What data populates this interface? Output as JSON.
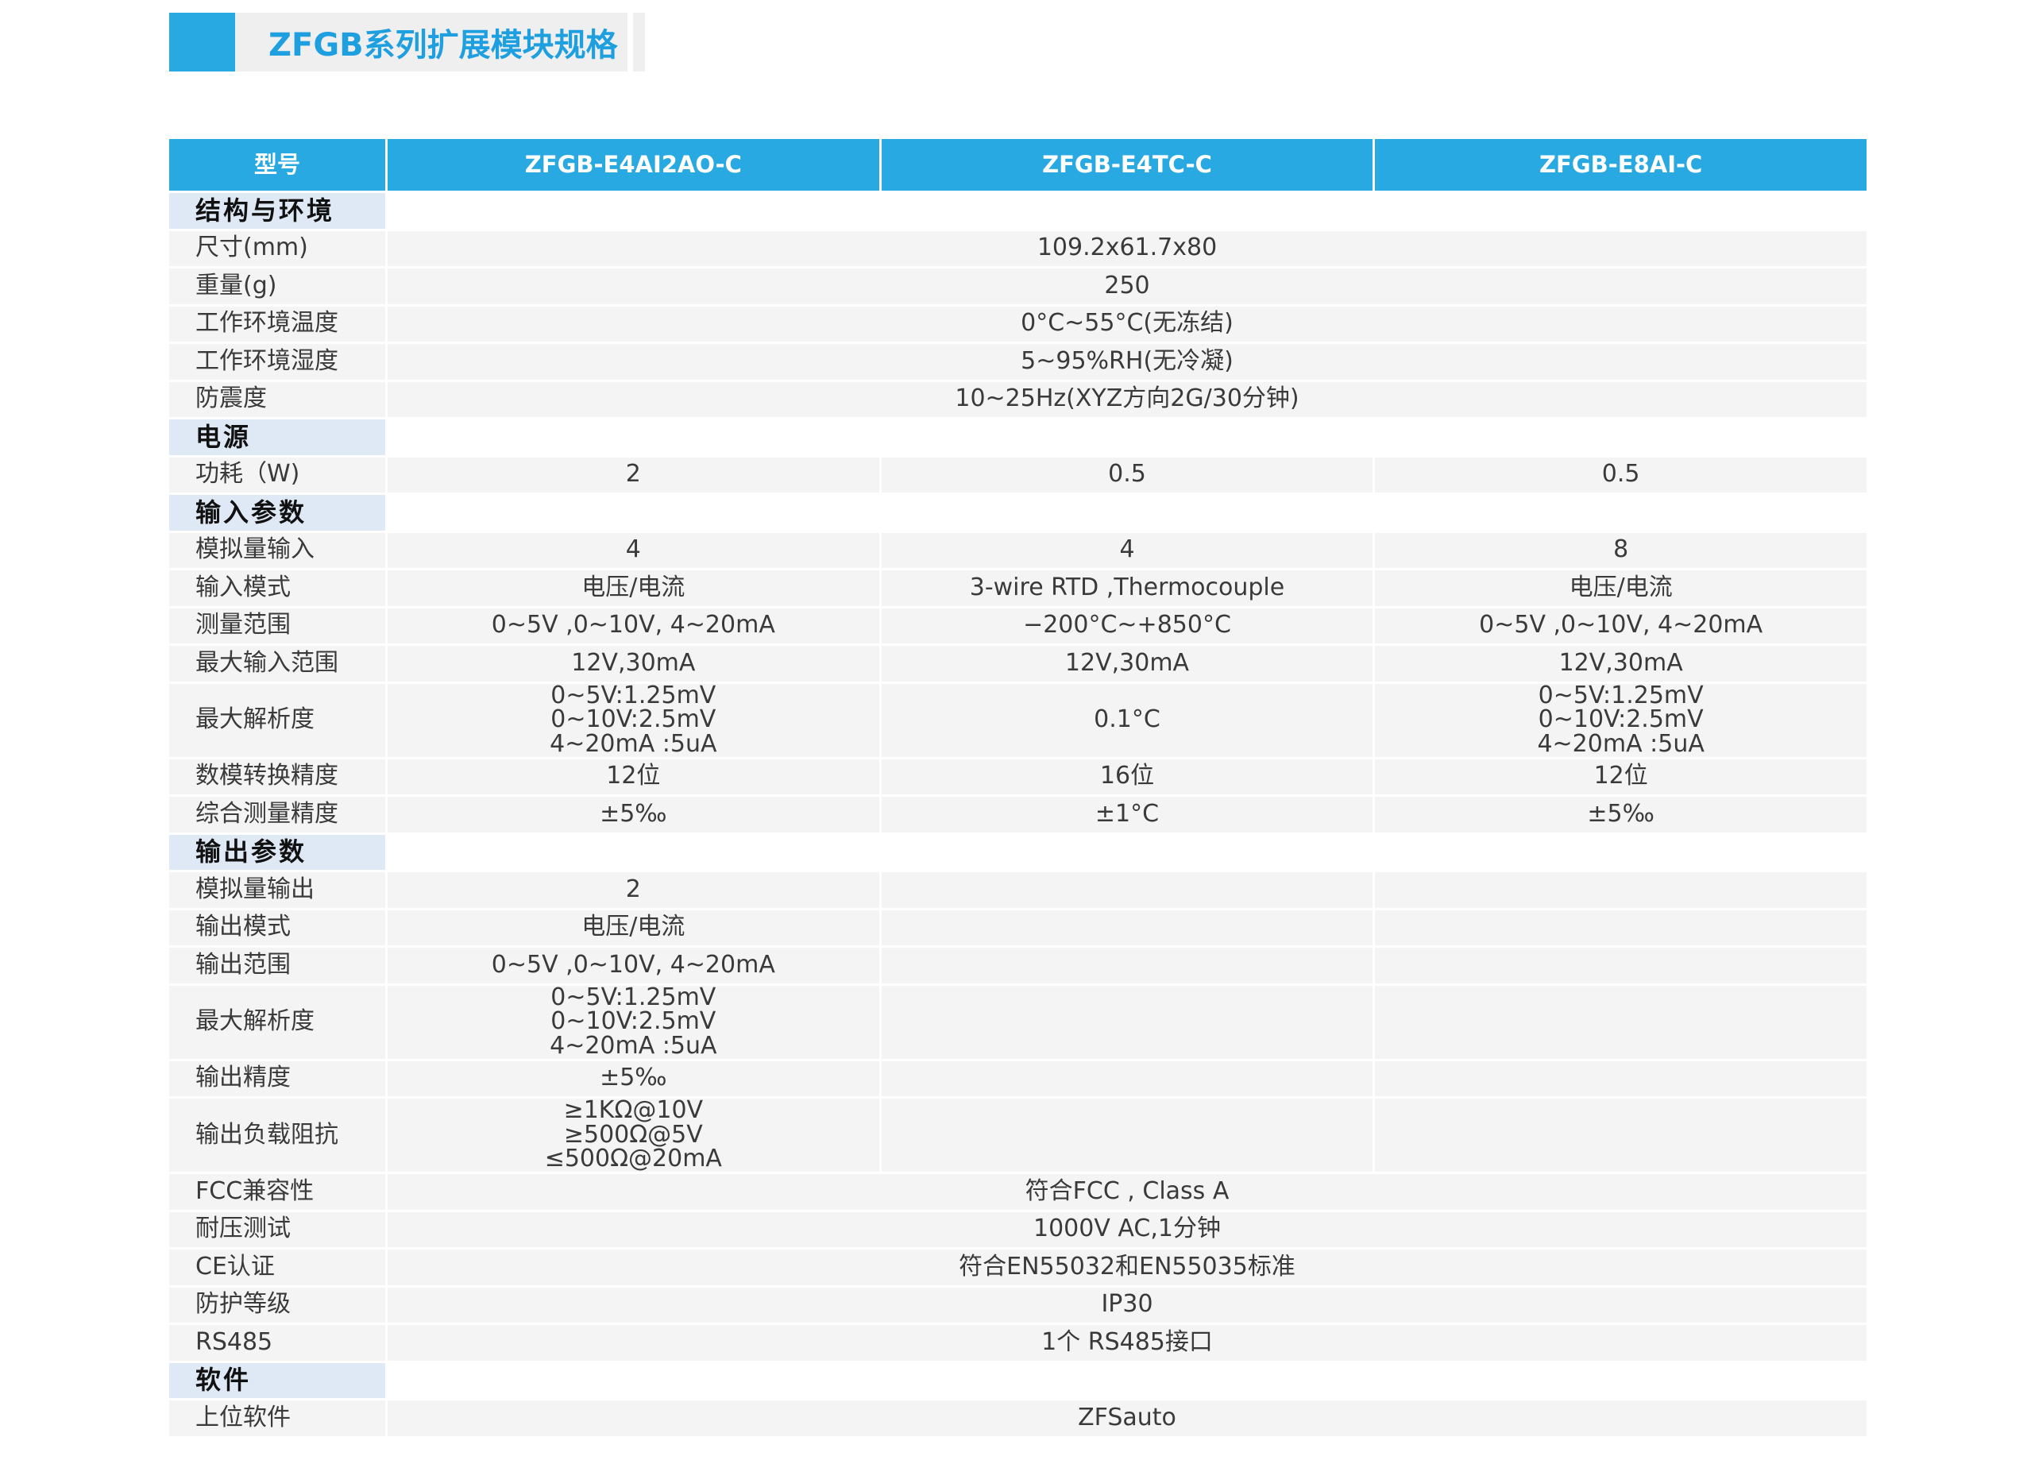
{
  "title": "ZFGB系列扩展模块规格",
  "colors": {
    "accent": "#29a9e1",
    "title_text": "#1e9fe0",
    "section_bg": "#dfe8f5",
    "cell_bg": "#f4f4f4"
  },
  "table": {
    "header": [
      "型号",
      "ZFGB-E4AI2AO-C",
      "ZFGB-E4TC-C",
      "ZFGB-E8AI-C"
    ],
    "rows": [
      {
        "type": "section",
        "label": "结构与环境"
      },
      {
        "type": "span",
        "label": "尺寸(mm)",
        "value": "109.2x61.7x80"
      },
      {
        "type": "span",
        "label": "重量(g)",
        "value": "250"
      },
      {
        "type": "span",
        "label": "工作环境温度",
        "value": "0°C~55°C(无冻结)"
      },
      {
        "type": "span",
        "label": "工作环境湿度",
        "value": "5~95%RH(无冷凝)"
      },
      {
        "type": "span",
        "label": "防震度",
        "value": "10~25Hz(XYZ方向2G/30分钟)"
      },
      {
        "type": "section",
        "label": "电源"
      },
      {
        "type": "triple",
        "label": "功耗（W)",
        "values": [
          "2",
          "0.5",
          "0.5"
        ]
      },
      {
        "type": "section",
        "label": "输入参数"
      },
      {
        "type": "triple",
        "label": "模拟量输入",
        "values": [
          "4",
          "4",
          "8"
        ]
      },
      {
        "type": "triple",
        "label": "输入模式",
        "values": [
          "电压/电流",
          "3-wire RTD ,Thermocouple",
          "电压/电流"
        ]
      },
      {
        "type": "triple",
        "label": "测量范围",
        "values": [
          "0~5V ,0~10V, 4~20mA",
          "−200°C~+850°C",
          "0~5V ,0~10V, 4~20mA"
        ]
      },
      {
        "type": "triple",
        "label": "最大输入范围",
        "values": [
          "12V,30mA",
          "12V,30mA",
          "12V,30mA"
        ]
      },
      {
        "type": "triple",
        "tall": true,
        "label": "最大解析度",
        "values": [
          "0~5V:1.25mV\n0~10V:2.5mV\n4~20mA :5uA",
          "0.1°C",
          "0~5V:1.25mV\n0~10V:2.5mV\n4~20mA :5uA"
        ]
      },
      {
        "type": "triple",
        "label": "数模转换精度",
        "values": [
          "12位",
          "16位",
          "12位"
        ]
      },
      {
        "type": "triple",
        "label": "综合测量精度",
        "values": [
          "±5‰",
          "±1°C",
          "±5‰"
        ]
      },
      {
        "type": "section",
        "label": "输出参数"
      },
      {
        "type": "triple",
        "label": "模拟量输出",
        "values": [
          "2",
          "",
          ""
        ]
      },
      {
        "type": "triple",
        "label": "输出模式",
        "values": [
          "电压/电流",
          "",
          ""
        ]
      },
      {
        "type": "triple",
        "label": "输出范围",
        "values": [
          "0~5V ,0~10V, 4~20mA",
          "",
          ""
        ]
      },
      {
        "type": "triple",
        "tall": true,
        "label": "最大解析度",
        "values": [
          "0~5V:1.25mV\n0~10V:2.5mV\n4~20mA :5uA",
          "",
          ""
        ]
      },
      {
        "type": "triple",
        "label": "输出精度",
        "values": [
          "±5‰",
          "",
          ""
        ]
      },
      {
        "type": "triple",
        "tall": true,
        "label": "输出负载阻抗",
        "values": [
          "≥1KΩ@10V\n≥500Ω@5V\n≤500Ω@20mA",
          "",
          ""
        ]
      },
      {
        "type": "span",
        "label": "FCC兼容性",
        "value": "符合FCC , Class A"
      },
      {
        "type": "span",
        "label": "耐压测试",
        "value": "1000V AC,1分钟"
      },
      {
        "type": "span",
        "label": "CE认证",
        "value": "符合EN55032和EN55035标准"
      },
      {
        "type": "span",
        "label": "防护等级",
        "value": "IP30"
      },
      {
        "type": "span",
        "label": "RS485",
        "value": "1个 RS485接口"
      },
      {
        "type": "section",
        "label": "软件"
      },
      {
        "type": "span",
        "label": "上位软件",
        "value": "ZFSauto"
      }
    ]
  }
}
